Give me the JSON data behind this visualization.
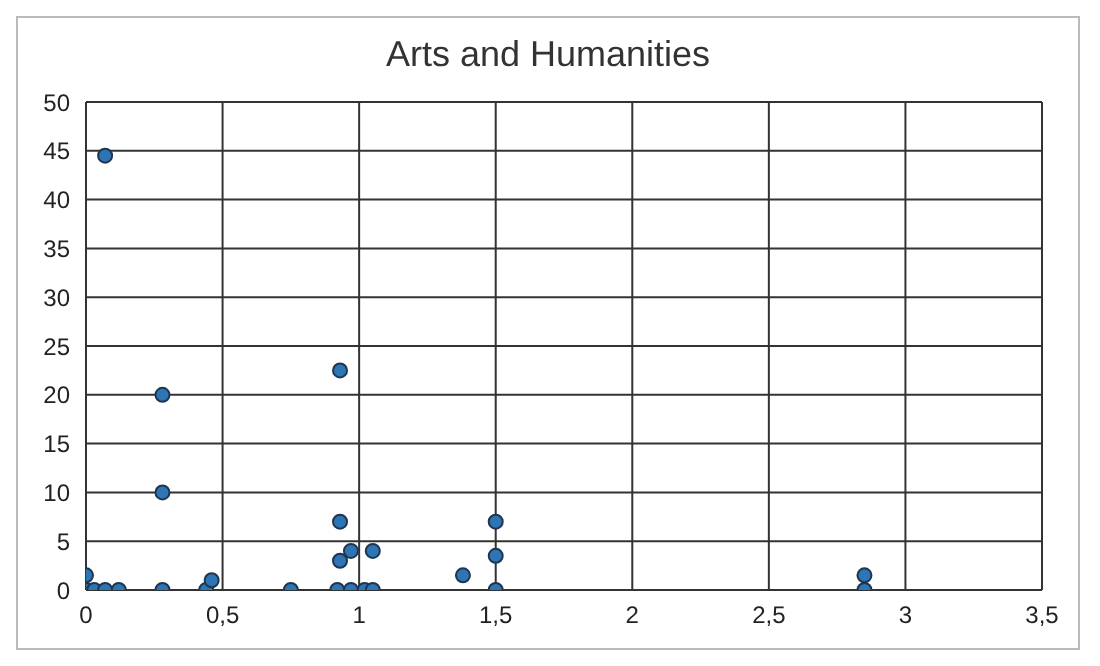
{
  "chart_data": {
    "type": "scatter",
    "title": "Arts and Humanities",
    "x": [
      0,
      0,
      0.03,
      0.07,
      0.12,
      0.07,
      0.28,
      0.28,
      0.28,
      0.44,
      0.46,
      0.75,
      0.92,
      0.93,
      0.93,
      0.93,
      0.97,
      0.97,
      1.05,
      1.02,
      1.05,
      1.38,
      1.5,
      1.5,
      1.5,
      2.85,
      2.85
    ],
    "values": [
      0,
      1.5,
      0,
      0,
      0,
      44.5,
      20,
      10,
      0,
      0,
      1,
      0,
      0,
      3,
      7,
      22.5,
      0,
      4,
      4,
      0,
      0,
      1.5,
      7,
      3.5,
      0,
      1.5,
      0
    ],
    "color": "#2e75b6",
    "marker": "circle",
    "grid": true,
    "xlim": [
      0,
      3.5
    ],
    "xticks": [
      0,
      {
        "value": 0.5,
        "label": "0,5"
      },
      1,
      {
        "value": 1.5,
        "label": "1,5"
      },
      2,
      {
        "value": 2.5,
        "label": "2,5"
      },
      3,
      {
        "value": 3.5,
        "label": "3,5"
      }
    ],
    "ylim": [
      0,
      50
    ],
    "yticks": [
      0,
      5,
      10,
      15,
      20,
      25,
      30,
      35,
      40,
      45,
      50
    ]
  }
}
